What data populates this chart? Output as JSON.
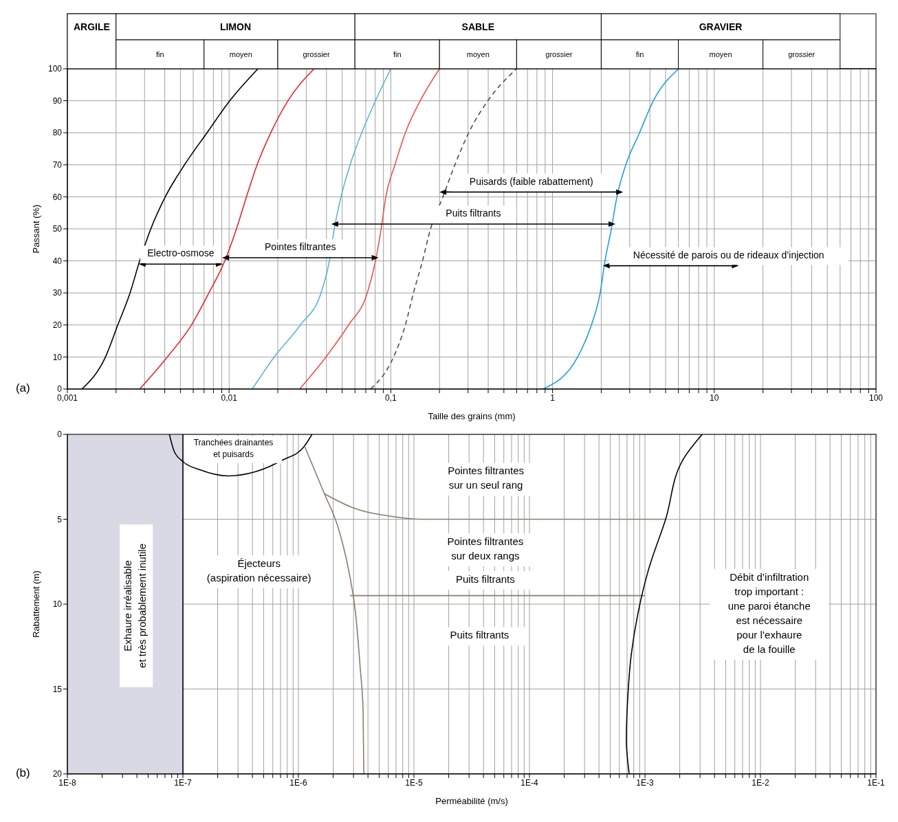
{
  "chart_data": [
    {
      "type": "line",
      "xlabel": "Taille des grains (mm)",
      "ylabel": "Passant (%)",
      "log": "x",
      "grid": true,
      "xlim": [
        0.001,
        100
      ],
      "ylim": [
        0,
        100
      ],
      "xticks": [
        {
          "value": 0.001,
          "label": "0,001"
        },
        {
          "value": 0.002,
          "label": null
        },
        {
          "value": 0.003,
          "label": null
        },
        {
          "value": 0.004,
          "label": null
        },
        {
          "value": 0.005,
          "label": null
        },
        {
          "value": 0.006,
          "label": null
        },
        {
          "value": 0.007,
          "label": null
        },
        {
          "value": 0.008,
          "label": null
        },
        {
          "value": 0.009,
          "label": null
        },
        {
          "value": 0.01,
          "label": "0,01"
        },
        {
          "value": 0.02,
          "label": null
        },
        {
          "value": 0.03,
          "label": null
        },
        {
          "value": 0.04,
          "label": null
        },
        {
          "value": 0.05,
          "label": null
        },
        {
          "value": 0.06,
          "label": null
        },
        {
          "value": 0.07,
          "label": null
        },
        {
          "value": 0.08,
          "label": null
        },
        {
          "value": 0.09,
          "label": null
        },
        {
          "value": 0.1,
          "label": "0,1"
        },
        {
          "value": 0.2,
          "label": null
        },
        {
          "value": 0.3,
          "label": null
        },
        {
          "value": 0.4,
          "label": null
        },
        {
          "value": 0.5,
          "label": null
        },
        {
          "value": 0.6,
          "label": null
        },
        {
          "value": 0.7,
          "label": null
        },
        {
          "value": 0.8,
          "label": null
        },
        {
          "value": 0.9,
          "label": null
        },
        1,
        {
          "value": 2,
          "label": null
        },
        {
          "value": 3,
          "label": null
        },
        {
          "value": 4,
          "label": null
        },
        {
          "value": 5,
          "label": null
        },
        {
          "value": 6,
          "label": null
        },
        {
          "value": 7,
          "label": null
        },
        {
          "value": 8,
          "label": null
        },
        {
          "value": 9,
          "label": null
        },
        10,
        {
          "value": 20,
          "label": null
        },
        {
          "value": 30,
          "label": null
        },
        {
          "value": 40,
          "label": null
        },
        {
          "value": 50,
          "label": null
        },
        {
          "value": 60,
          "label": null
        },
        {
          "value": 70,
          "label": null
        },
        {
          "value": 80,
          "label": null
        },
        {
          "value": 90,
          "label": null
        },
        100
      ],
      "yticks": [
        0,
        10,
        20,
        30,
        40,
        50,
        60,
        70,
        80,
        90,
        100
      ],
      "series": [
        {
          "color": "#000000",
          "x": [
            0.00123,
            0.00172,
            0.00205,
            0.00244,
            0.0028,
            0.00328,
            0.00403,
            0.0053,
            0.0073,
            0.0101,
            0.0151
          ],
          "values": [
            0,
            10,
            20,
            30,
            40,
            50,
            60,
            70,
            80,
            90,
            100
          ]
        },
        {
          "color": "#e3262b",
          "x": [
            0.0028,
            0.00415,
            0.00585,
            0.0075,
            0.0094,
            0.0111,
            0.0128,
            0.0149,
            0.0181,
            0.0231,
            0.0336
          ],
          "values": [
            0,
            10,
            20,
            30,
            40,
            50,
            60,
            70,
            80,
            90,
            100
          ]
        },
        {
          "color": "#5ab4d6",
          "x": [
            0.0139,
            0.019,
            0.0276,
            0.037,
            0.0417,
            0.0447,
            0.0492,
            0.056,
            0.0661,
            0.0804,
            0.1
          ],
          "values": [
            0,
            10,
            20,
            30,
            40,
            50,
            60,
            70,
            80,
            90,
            100
          ]
        },
        {
          "color": "#e9524c",
          "x": [
            0.0273,
            0.0397,
            0.0548,
            0.0715,
            0.0804,
            0.0871,
            0.0931,
            0.106,
            0.123,
            0.152,
            0.2
          ],
          "values": [
            0,
            10,
            20,
            30,
            40,
            50,
            60,
            70,
            80,
            90,
            100
          ]
        },
        {
          "color": "#5b4c44",
          "line_style": "dashed",
          "x": [
            0.0751,
            0.104,
            0.123,
            0.138,
            0.157,
            0.176,
            0.21,
            0.249,
            0.303,
            0.398,
            0.6
          ],
          "values": [
            0,
            10,
            20,
            30,
            40,
            50,
            60,
            70,
            80,
            90,
            100
          ]
        },
        {
          "color": "#1f9fd9",
          "x": [
            0.873,
            1.43,
            1.74,
            1.97,
            2.11,
            2.31,
            2.5,
            2.84,
            3.45,
            4.2,
            6.04
          ],
          "values": [
            0,
            10,
            20,
            30,
            40,
            50,
            60,
            70,
            80,
            90,
            100
          ]
        },
        {
          "name": "Electro-osmose",
          "color": "#000000",
          "marker": "triangle",
          "x": [
            0.0029,
            0.0087
          ],
          "values": [
            39,
            39
          ]
        },
        {
          "name": "Pointes filtrantes",
          "color": "#000000",
          "marker": "triangle",
          "x": [
            0.0095,
            0.08
          ],
          "values": [
            41,
            41
          ]
        },
        {
          "name": "Puits filtrants",
          "color": "#000000",
          "marker": "triangle",
          "x": [
            0.045,
            2.33
          ],
          "values": [
            51.5,
            51.5
          ]
        },
        {
          "name": "Puisards (faible rabattement)",
          "color": "#000000",
          "marker": "triangle",
          "x": [
            0.21,
            2.6
          ],
          "values": [
            61.5,
            61.5
          ]
        },
        {
          "name": "Nécessité de parois ou de rideaux d’injection",
          "color": "#000000",
          "marker": "triangle",
          "x": [
            2.15,
            13.5
          ],
          "values": [
            38.5,
            38.5
          ]
        }
      ],
      "annotations": [
        "(a)",
        "ARGILE",
        "LIMON",
        "SABLE",
        "GRAVIER",
        "fin",
        "moyen",
        "grossier",
        "fin",
        "moyen",
        "grossier",
        "fin",
        "moyen",
        "grossier"
      ]
    },
    {
      "type": "line",
      "xlabel": "Perméabilité (m/s)",
      "ylabel": "Rabattement (m)",
      "log": "x",
      "grid": true,
      "xlim": [
        1e-08,
        0.1
      ],
      "ylim": [
        20,
        0
      ],
      "xticks": [
        {
          "value": 1e-08,
          "label": "1E-8"
        },
        {
          "value": 2e-08,
          "label": null
        },
        {
          "value": 3e-08,
          "label": null
        },
        {
          "value": 4e-08,
          "label": null
        },
        {
          "value": 5e-08,
          "label": null
        },
        {
          "value": 6e-08,
          "label": null
        },
        {
          "value": 7e-08,
          "label": null
        },
        {
          "value": 8e-08,
          "label": null
        },
        {
          "value": 9e-08,
          "label": null
        },
        {
          "value": 1e-07,
          "label": "1E-7"
        },
        {
          "value": 2e-07,
          "label": null
        },
        {
          "value": 3e-07,
          "label": null
        },
        {
          "value": 4e-07,
          "label": null
        },
        {
          "value": 5e-07,
          "label": null
        },
        {
          "value": 6e-07,
          "label": null
        },
        {
          "value": 7e-07,
          "label": null
        },
        {
          "value": 8e-07,
          "label": null
        },
        {
          "value": 9e-07,
          "label": null
        },
        {
          "value": 1e-06,
          "label": "1E-6"
        },
        {
          "value": 2e-06,
          "label": null
        },
        {
          "value": 3e-06,
          "label": null
        },
        {
          "value": 4e-06,
          "label": null
        },
        {
          "value": 5e-06,
          "label": null
        },
        {
          "value": 6e-06,
          "label": null
        },
        {
          "value": 7e-06,
          "label": null
        },
        {
          "value": 8e-06,
          "label": null
        },
        {
          "value": 9e-06,
          "label": null
        },
        {
          "value": 1e-05,
          "label": "1E-5"
        },
        {
          "value": 2e-05,
          "label": null
        },
        {
          "value": 3e-05,
          "label": null
        },
        {
          "value": 4e-05,
          "label": null
        },
        {
          "value": 5e-05,
          "label": null
        },
        {
          "value": 6e-05,
          "label": null
        },
        {
          "value": 7e-05,
          "label": null
        },
        {
          "value": 8e-05,
          "label": null
        },
        {
          "value": 9e-05,
          "label": null
        },
        {
          "value": 0.0001,
          "label": "1E-4"
        },
        {
          "value": 0.0002,
          "label": null
        },
        {
          "value": 0.0003,
          "label": null
        },
        {
          "value": 0.0004,
          "label": null
        },
        {
          "value": 0.0005,
          "label": null
        },
        {
          "value": 0.0006,
          "label": null
        },
        {
          "value": 0.0007,
          "label": null
        },
        {
          "value": 0.0008,
          "label": null
        },
        {
          "value": 0.0009,
          "label": null
        },
        {
          "value": 0.001,
          "label": "1E-3"
        },
        {
          "value": 0.002,
          "label": null
        },
        {
          "value": 0.003,
          "label": null
        },
        {
          "value": 0.004,
          "label": null
        },
        {
          "value": 0.005,
          "label": null
        },
        {
          "value": 0.006,
          "label": null
        },
        {
          "value": 0.007,
          "label": null
        },
        {
          "value": 0.008,
          "label": null
        },
        {
          "value": 0.009,
          "label": null
        },
        {
          "value": 0.01,
          "label": "1E-2"
        },
        {
          "value": 0.02,
          "label": null
        },
        {
          "value": 0.03,
          "label": null
        },
        {
          "value": 0.04,
          "label": null
        },
        {
          "value": 0.05,
          "label": null
        },
        {
          "value": 0.06,
          "label": null
        },
        {
          "value": 0.07,
          "label": null
        },
        {
          "value": 0.08,
          "label": null
        },
        {
          "value": 0.09,
          "label": null
        },
        {
          "value": 0.1,
          "label": "1E-1"
        }
      ],
      "yticks": [
        0,
        5,
        10,
        15,
        20
      ],
      "series": [
        {
          "color": "#000000",
          "x": [
            1e-07,
            1e-07
          ],
          "values": [
            0,
            20
          ]
        },
        {
          "color": "#000000",
          "x": [
            7.64e-08,
            8.41e-08,
            1e-07,
            1.42e-07,
            2.46e-07,
            4.26e-07,
            7.37e-07,
            1.11e-06,
            1.31e-06
          ],
          "values": [
            0,
            1,
            1.6,
            2.1,
            2.45,
            2.2,
            1.5,
            0.75,
            0
          ]
        },
        {
          "color": "#8c7b6b",
          "x": [
            1.14e-06,
            1.68e-06,
            2.21e-06,
            2.72e-06,
            3.12e-06,
            3.43e-06,
            3.63e-06,
            3.68e-06
          ],
          "values": [
            0.75,
            3.5,
            5.5,
            8,
            10.5,
            13.8,
            16.3,
            20
          ]
        },
        {
          "color": "#8c7b6b",
          "x": [
            1.68e-06,
            2.91e-06,
            6.64e-06,
            1.15e-05,
            0.00151
          ],
          "values": [
            3.5,
            4.3,
            4.85,
            5,
            5
          ]
        },
        {
          "color": "#8c7b6b",
          "x": [
            2.8e-06,
            0.001
          ],
          "values": [
            9.5,
            9.5
          ]
        },
        {
          "color": "#000000",
          "x": [
            0.00313,
            0.00213,
            0.00151,
            0.00107,
            0.000872,
            0.00076,
            0.00071,
            0.00069,
            0.00073
          ],
          "values": [
            0,
            1.5,
            5,
            8,
            10.5,
            13,
            15.5,
            18,
            20
          ]
        }
      ],
      "bands": [
        {
          "axis": "x",
          "from": 1e-08,
          "to": 1e-07,
          "color": "#d9d9e6"
        }
      ],
      "annotations": [
        "(b)",
        "Tranchées drainantes\net puisards",
        "Pointes filtrantes\nsur un seul rang",
        "Pointes filtrantes\nsur deux rangs",
        "Puits filtrants",
        "Éjecteurs\n(aspiration nécessaire)",
        "Puits filtrants",
        "Exhaure irréalisable\net très probablement inutile",
        "Débit d’infiltration\ntrop important :\nune paroi étanche\nest nécessaire\npour l’exhaure\nde la fouille"
      ]
    }
  ]
}
